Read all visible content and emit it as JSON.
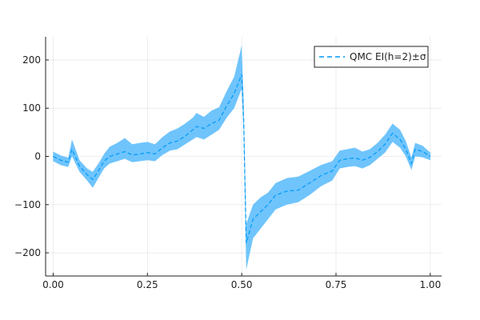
{
  "chart_data": {
    "type": "line",
    "title": "",
    "xlabel": "",
    "ylabel": "",
    "xlim": [
      -0.02,
      1.03
    ],
    "ylim": [
      -248,
      248
    ],
    "grid": true,
    "legend_position": "top-right",
    "xticks": [
      {
        "value": 0.0,
        "label": "0.00"
      },
      {
        "value": 0.25,
        "label": "0.25"
      },
      {
        "value": 0.5,
        "label": "0.50"
      },
      {
        "value": 0.75,
        "label": "0.75"
      },
      {
        "value": 1.0,
        "label": "1.00"
      }
    ],
    "yticks": [
      {
        "value": 200,
        "label": "200"
      },
      {
        "value": 100,
        "label": "100"
      },
      {
        "value": 0,
        "label": "0"
      },
      {
        "value": -100,
        "label": "−100"
      },
      {
        "value": -200,
        "label": "−200"
      }
    ],
    "series": [
      {
        "name": "QMC EI(h=2)±σ",
        "color": "#009af9",
        "band_color": "#6fc4fc",
        "line_style": "dashed",
        "points": [
          {
            "x": 0.0,
            "mean": 0,
            "lower": -10,
            "upper": 10
          },
          {
            "x": 0.02,
            "mean": -8,
            "lower": -18,
            "upper": 2
          },
          {
            "x": 0.04,
            "mean": -12,
            "lower": -22,
            "upper": -3
          },
          {
            "x": 0.05,
            "mean": 15,
            "lower": 0,
            "upper": 35
          },
          {
            "x": 0.07,
            "mean": -20,
            "lower": -32,
            "upper": -8
          },
          {
            "x": 0.09,
            "mean": -38,
            "lower": -50,
            "upper": -25
          },
          {
            "x": 0.105,
            "mean": -48,
            "lower": -65,
            "upper": -32
          },
          {
            "x": 0.12,
            "mean": -30,
            "lower": -45,
            "upper": -15
          },
          {
            "x": 0.135,
            "mean": -10,
            "lower": -25,
            "upper": 5
          },
          {
            "x": 0.15,
            "mean": 0,
            "lower": -15,
            "upper": 20
          },
          {
            "x": 0.17,
            "mean": 5,
            "lower": -10,
            "upper": 28
          },
          {
            "x": 0.19,
            "mean": 10,
            "lower": -5,
            "upper": 38
          },
          {
            "x": 0.21,
            "mean": 3,
            "lower": -12,
            "upper": 25
          },
          {
            "x": 0.23,
            "mean": 5,
            "lower": -10,
            "upper": 28
          },
          {
            "x": 0.25,
            "mean": 8,
            "lower": -8,
            "upper": 30
          },
          {
            "x": 0.27,
            "mean": 5,
            "lower": -10,
            "upper": 25
          },
          {
            "x": 0.29,
            "mean": 18,
            "lower": 3,
            "upper": 40
          },
          {
            "x": 0.31,
            "mean": 28,
            "lower": 12,
            "upper": 52
          },
          {
            "x": 0.33,
            "mean": 32,
            "lower": 15,
            "upper": 58
          },
          {
            "x": 0.35,
            "mean": 42,
            "lower": 25,
            "upper": 68
          },
          {
            "x": 0.37,
            "mean": 55,
            "lower": 35,
            "upper": 80
          },
          {
            "x": 0.38,
            "mean": 62,
            "lower": 40,
            "upper": 90
          },
          {
            "x": 0.4,
            "mean": 58,
            "lower": 35,
            "upper": 82
          },
          {
            "x": 0.42,
            "mean": 68,
            "lower": 45,
            "upper": 95
          },
          {
            "x": 0.44,
            "mean": 75,
            "lower": 55,
            "upper": 102
          },
          {
            "x": 0.46,
            "mean": 105,
            "lower": 80,
            "upper": 135
          },
          {
            "x": 0.48,
            "mean": 130,
            "lower": 100,
            "upper": 165
          },
          {
            "x": 0.5,
            "mean": 170,
            "lower": 140,
            "upper": 230
          },
          {
            "x": 0.505,
            "mean": 80,
            "lower": 50,
            "upper": 120
          },
          {
            "x": 0.512,
            "mean": -180,
            "lower": -235,
            "upper": -140
          },
          {
            "x": 0.53,
            "mean": -130,
            "lower": -170,
            "upper": -100
          },
          {
            "x": 0.55,
            "mean": -115,
            "lower": -150,
            "upper": -85
          },
          {
            "x": 0.57,
            "mean": -100,
            "lower": -130,
            "upper": -75
          },
          {
            "x": 0.59,
            "mean": -80,
            "lower": -110,
            "upper": -55
          },
          {
            "x": 0.62,
            "mean": -72,
            "lower": -100,
            "upper": -45
          },
          {
            "x": 0.65,
            "mean": -70,
            "lower": -95,
            "upper": -42
          },
          {
            "x": 0.68,
            "mean": -55,
            "lower": -80,
            "upper": -30
          },
          {
            "x": 0.71,
            "mean": -40,
            "lower": -62,
            "upper": -18
          },
          {
            "x": 0.74,
            "mean": -30,
            "lower": -50,
            "upper": -10
          },
          {
            "x": 0.76,
            "mean": -8,
            "lower": -25,
            "upper": 12
          },
          {
            "x": 0.78,
            "mean": -5,
            "lower": -22,
            "upper": 15
          },
          {
            "x": 0.8,
            "mean": -3,
            "lower": -20,
            "upper": 18
          },
          {
            "x": 0.82,
            "mean": -8,
            "lower": -25,
            "upper": 10
          },
          {
            "x": 0.84,
            "mean": -2,
            "lower": -18,
            "upper": 15
          },
          {
            "x": 0.86,
            "mean": 10,
            "lower": -5,
            "upper": 28
          },
          {
            "x": 0.88,
            "mean": 25,
            "lower": 8,
            "upper": 45
          },
          {
            "x": 0.9,
            "mean": 48,
            "lower": 30,
            "upper": 68
          },
          {
            "x": 0.92,
            "mean": 35,
            "lower": 18,
            "upper": 55
          },
          {
            "x": 0.935,
            "mean": 15,
            "lower": 0,
            "upper": 32
          },
          {
            "x": 0.95,
            "mean": -15,
            "lower": -28,
            "upper": -2
          },
          {
            "x": 0.96,
            "mean": 15,
            "lower": 0,
            "upper": 28
          },
          {
            "x": 0.98,
            "mean": 10,
            "lower": -2,
            "upper": 22
          },
          {
            "x": 1.0,
            "mean": 0,
            "lower": -8,
            "upper": 8
          }
        ]
      }
    ]
  }
}
